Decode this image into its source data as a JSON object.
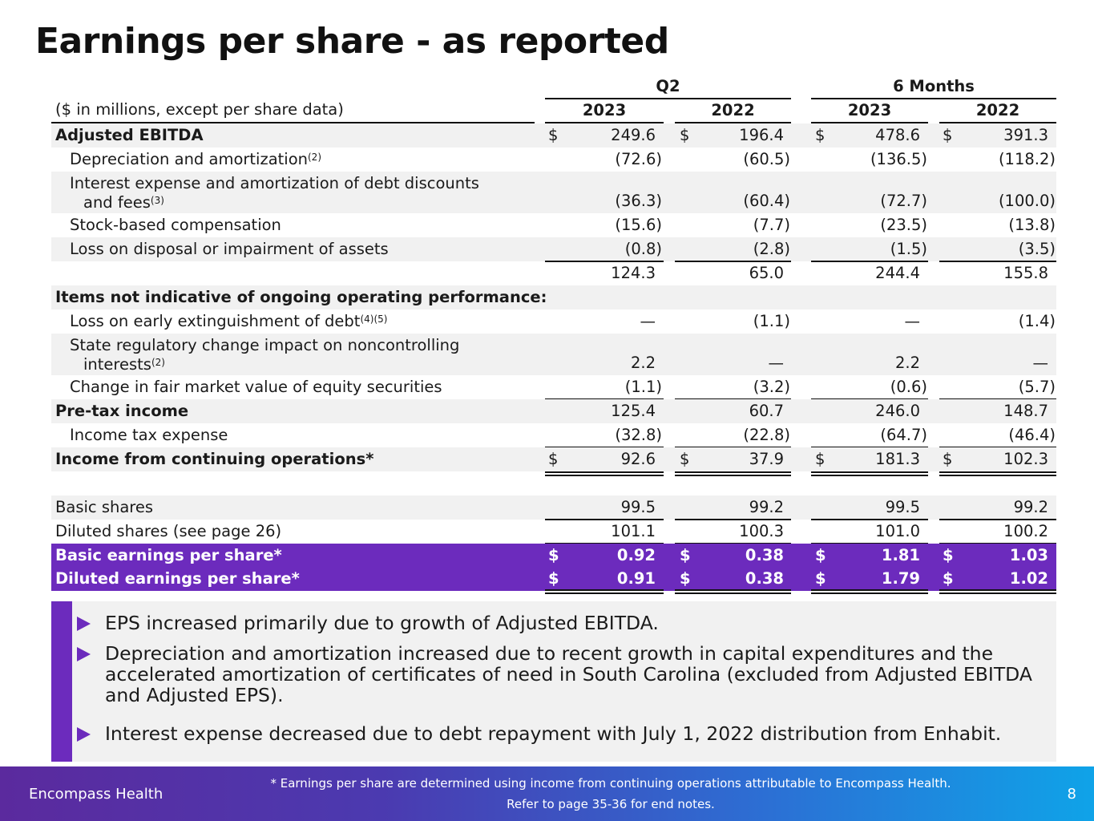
{
  "title": "Earnings per share - as reported",
  "header": {
    "q2": "Q2",
    "six_months": "6 Months",
    "units": "($ in millions, except per share data)",
    "years": [
      "2023",
      "2022",
      "2023",
      "2022"
    ]
  },
  "rows": [
    {
      "label": "Adjusted EBITDA",
      "values": [
        "249.6",
        "196.4",
        "478.6",
        "391.3"
      ],
      "dollar": "$"
    },
    {
      "label": "Depreciation and amortization",
      "sup": "(2)",
      "values": [
        "(72.6)",
        "(60.5)",
        "(136.5)",
        "(118.2)"
      ]
    },
    {
      "label_line1": "Interest expense and amortization of debt discounts",
      "label_line2": "and fees",
      "sup": "(3)",
      "values": [
        "(36.3)",
        "(60.4)",
        "(72.7)",
        "(100.0)"
      ]
    },
    {
      "label": "Stock-based compensation",
      "values": [
        "(15.6)",
        "(7.7)",
        "(23.5)",
        "(13.8)"
      ]
    },
    {
      "label": "Loss on disposal or impairment of assets",
      "values": [
        "(0.8)",
        "(2.8)",
        "(1.5)",
        "(3.5)"
      ]
    },
    {
      "label": "",
      "values": [
        "124.3",
        "65.0",
        "244.4",
        "155.8"
      ]
    },
    {
      "label": "Items not indicative of ongoing operating performance:"
    },
    {
      "label": "Loss on early extinguishment of debt",
      "sup": "(4)(5)",
      "values": [
        "—",
        "(1.1)",
        "—",
        "(1.4)"
      ]
    },
    {
      "label_line1": "State regulatory change impact on noncontrolling",
      "label_line2": "interests",
      "sup": "(2)",
      "values": [
        "2.2",
        "—",
        "2.2",
        "—"
      ]
    },
    {
      "label": "Change in fair market value of equity securities",
      "values": [
        "(1.1)",
        "(3.2)",
        "(0.6)",
        "(5.7)"
      ]
    },
    {
      "label": "Pre-tax income",
      "values": [
        "125.4",
        "60.7",
        "246.0",
        "148.7"
      ]
    },
    {
      "label": "Income tax expense",
      "values": [
        "(32.8)",
        "(22.8)",
        "(64.7)",
        "(46.4)"
      ]
    },
    {
      "label": "Income from continuing operations*",
      "values": [
        "92.6",
        "37.9",
        "181.3",
        "102.3"
      ],
      "dollar": "$"
    },
    {
      "label": "Basic shares",
      "values": [
        "99.5",
        "99.2",
        "99.5",
        "99.2"
      ]
    },
    {
      "label": "Diluted shares (see page 26)",
      "values": [
        "101.1",
        "100.3",
        "101.0",
        "100.2"
      ]
    },
    {
      "label": "Basic earnings per share*",
      "values": [
        "0.92",
        "0.38",
        "1.81",
        "1.03"
      ],
      "dollar": "$"
    },
    {
      "label": "Diluted earnings per share*",
      "values": [
        "0.91",
        "0.38",
        "1.79",
        "1.02"
      ],
      "dollar": "$"
    }
  ],
  "bullets": [
    "EPS increased primarily due to growth of Adjusted EBITDA.",
    "Depreciation and amortization increased due to recent growth in capital expenditures and the accelerated amortization of certificates of need in South Carolina (excluded from Adjusted EBITDA and Adjusted EPS).",
    "Interest expense decreased due to debt repayment with July 1, 2022 distribution from Enhabit."
  ],
  "footer": {
    "brand": "Encompass Health",
    "note_line1": "* Earnings per share are determined using income from continuing operations attributable to Encompass Health.",
    "note_line2": "Refer to page 35-36 for end notes.",
    "page": "8"
  },
  "colors": {
    "accent": "#6c2bbd",
    "shade": "#f1f1f1"
  }
}
